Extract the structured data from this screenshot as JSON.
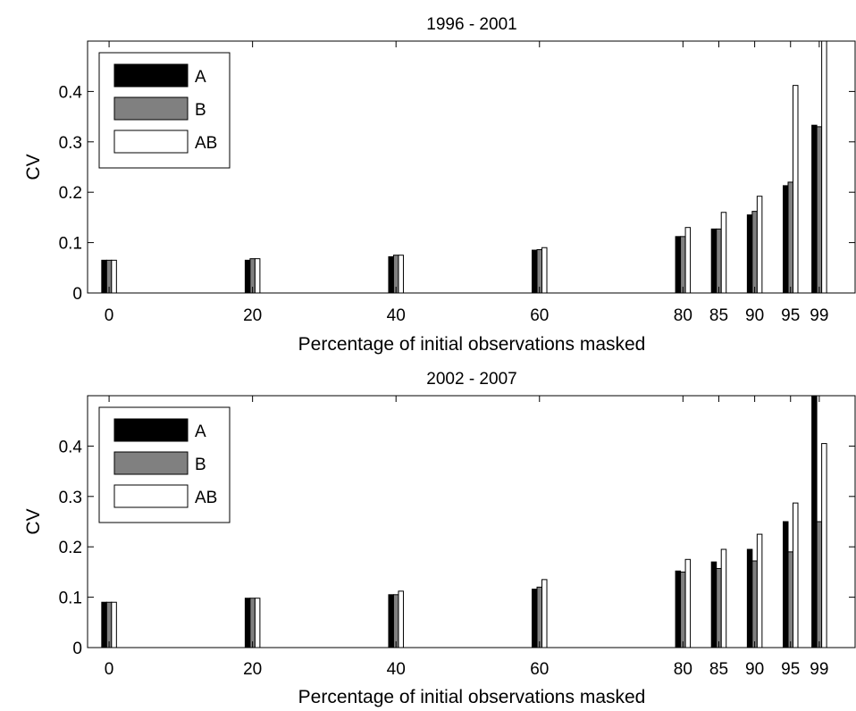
{
  "chart_data": [
    {
      "type": "bar",
      "title": "1996 - 2001",
      "xlabel": "Percentage of initial observations masked",
      "ylabel": "CV",
      "x": [
        0,
        20,
        40,
        60,
        80,
        85,
        90,
        95,
        99
      ],
      "x_tick_labels": [
        "0",
        "20",
        "40",
        "60",
        "80",
        "85",
        "90",
        "95",
        "99"
      ],
      "xlim": [
        -3,
        104
      ],
      "ylim": [
        0,
        0.5
      ],
      "y_ticks": [
        0,
        0.1,
        0.2,
        0.3,
        0.4
      ],
      "y_tick_labels": [
        "0",
        "0.1",
        "0.2",
        "0.3",
        "0.4"
      ],
      "grid": false,
      "legend": "top-left",
      "series": [
        {
          "name": "A",
          "color": "#000000",
          "values": [
            0.065,
            0.065,
            0.072,
            0.085,
            0.112,
            0.127,
            0.155,
            0.213,
            0.333
          ]
        },
        {
          "name": "B",
          "color": "#808080",
          "values": [
            0.065,
            0.068,
            0.075,
            0.086,
            0.112,
            0.127,
            0.162,
            0.22,
            0.33
          ]
        },
        {
          "name": "AB",
          "color": "#ffffff",
          "values": [
            0.065,
            0.068,
            0.075,
            0.09,
            0.13,
            0.16,
            0.192,
            0.412,
            0.5
          ]
        }
      ]
    },
    {
      "type": "bar",
      "title": "2002 - 2007",
      "xlabel": "Percentage of initial observations masked",
      "ylabel": "CV",
      "x": [
        0,
        20,
        40,
        60,
        80,
        85,
        90,
        95,
        99
      ],
      "x_tick_labels": [
        "0",
        "20",
        "40",
        "60",
        "80",
        "85",
        "90",
        "95",
        "99"
      ],
      "xlim": [
        -3,
        104
      ],
      "ylim": [
        0,
        0.5
      ],
      "y_ticks": [
        0,
        0.1,
        0.2,
        0.3,
        0.4
      ],
      "y_tick_labels": [
        "0",
        "0.1",
        "0.2",
        "0.3",
        "0.4"
      ],
      "grid": false,
      "legend": "top-left",
      "series": [
        {
          "name": "A",
          "color": "#000000",
          "values": [
            0.09,
            0.098,
            0.105,
            0.116,
            0.152,
            0.17,
            0.195,
            0.25,
            0.5
          ]
        },
        {
          "name": "B",
          "color": "#808080",
          "values": [
            0.09,
            0.098,
            0.105,
            0.12,
            0.15,
            0.157,
            0.172,
            0.19,
            0.25
          ]
        },
        {
          "name": "AB",
          "color": "#ffffff",
          "values": [
            0.09,
            0.098,
            0.112,
            0.135,
            0.175,
            0.195,
            0.225,
            0.287,
            0.405
          ]
        }
      ]
    }
  ]
}
